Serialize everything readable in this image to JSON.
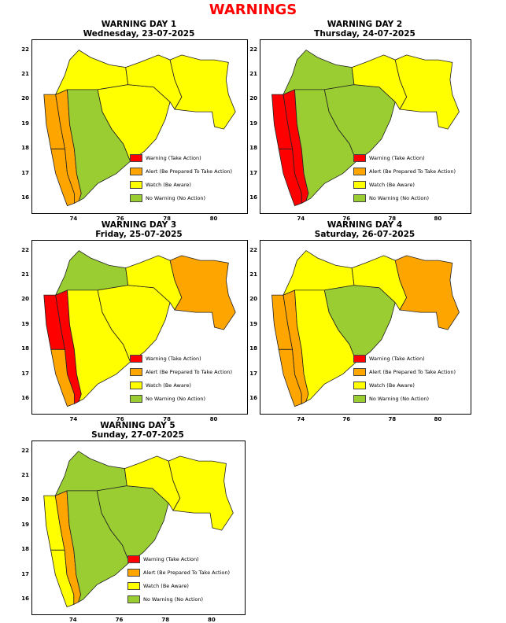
{
  "title": "WARNINGS",
  "legend": [
    {
      "label": "Warning (Take Action)",
      "level": "red",
      "color": "#ff0000"
    },
    {
      "label": "Alert (Be Prepared To Take Action)",
      "level": "orange",
      "color": "#ffa500"
    },
    {
      "label": "Watch (Be Aware)",
      "level": "yellow",
      "color": "#ffff00"
    },
    {
      "label": "No Warning (No Action)",
      "level": "green",
      "color": "#9acd32"
    }
  ],
  "x_ticks": [
    "74",
    "76",
    "78",
    "80"
  ],
  "y_ticks": [
    "16",
    "17",
    "18",
    "19",
    "20",
    "21",
    "22"
  ],
  "zones": [
    "konkan_north",
    "konkan_south",
    "ghat",
    "north_maharashtra",
    "madhya_maharashtra",
    "marathwada",
    "vidarbha_west",
    "vidarbha_east"
  ],
  "days": [
    {
      "heading": "WARNING DAY 1",
      "date": "Wednesday, 23-07-2025",
      "levels": [
        "orange",
        "orange",
        "orange",
        "yellow",
        "green",
        "yellow",
        "yellow",
        "yellow"
      ]
    },
    {
      "heading": "WARNING DAY 2",
      "date": "Thursday, 24-07-2025",
      "levels": [
        "red",
        "red",
        "red",
        "green",
        "green",
        "green",
        "yellow",
        "yellow"
      ]
    },
    {
      "heading": "WARNING DAY 3",
      "date": "Friday, 25-07-2025",
      "levels": [
        "red",
        "orange",
        "red",
        "green",
        "yellow",
        "yellow",
        "yellow",
        "orange"
      ]
    },
    {
      "heading": "WARNING DAY 4",
      "date": "Saturday, 26-07-2025",
      "levels": [
        "orange",
        "orange",
        "orange",
        "yellow",
        "yellow",
        "green",
        "yellow",
        "orange"
      ]
    },
    {
      "heading": "WARNING DAY 5",
      "date": "Sunday, 27-07-2025",
      "levels": [
        "yellow",
        "yellow",
        "orange",
        "green",
        "green",
        "green",
        "yellow",
        "yellow"
      ]
    }
  ]
}
